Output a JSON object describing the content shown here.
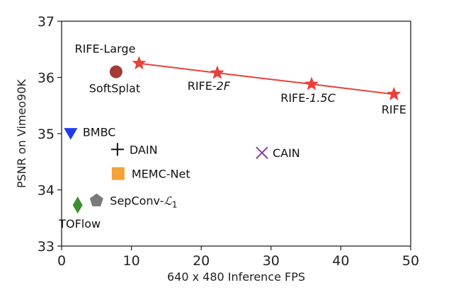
{
  "chart_data": {
    "type": "scatter",
    "title": "",
    "xlabel": "640 x 480 Inference FPS",
    "ylabel": "PSNR on Vimeo90K",
    "xlim": [
      0,
      50
    ],
    "ylim": [
      33,
      37
    ],
    "xticks": [
      0,
      10,
      20,
      30,
      40,
      50
    ],
    "yticks": [
      33,
      34,
      35,
      36,
      37
    ],
    "grid": false,
    "line_series": {
      "name": "RIFE family",
      "color": "#e8413b",
      "points": [
        {
          "label": "RIFE-Large",
          "x": 11.1,
          "y": 36.25
        },
        {
          "label": "RIFE-2F",
          "x": 22.3,
          "y": 36.08
        },
        {
          "label": "RIFE-1.5C",
          "x": 35.8,
          "y": 35.88
        },
        {
          "label": "RIFE",
          "x": 47.6,
          "y": 35.7
        }
      ]
    },
    "points": [
      {
        "label": "SoftSplat",
        "x": 7.8,
        "y": 36.1,
        "marker": "circle",
        "color": "#a23a36"
      },
      {
        "label": "BMBC",
        "x": 1.3,
        "y": 35.03,
        "marker": "triangle-down",
        "color": "#1f3cf0"
      },
      {
        "label": "DAIN",
        "x": 8.0,
        "y": 34.72,
        "marker": "plus",
        "color": "#111111"
      },
      {
        "label": "CAIN",
        "x": 28.7,
        "y": 34.66,
        "marker": "x",
        "color": "#8a3aa0"
      },
      {
        "label": "MEMC-Net",
        "x": 8.1,
        "y": 34.29,
        "marker": "square",
        "color": "#f4a23a"
      },
      {
        "label": "SepConv-",
        "math": "ℒ",
        "sub": "1",
        "x": 5.0,
        "y": 33.81,
        "marker": "pentagon",
        "color": "#7a7a7a"
      },
      {
        "label": "TOFlow",
        "x": 2.3,
        "y": 33.73,
        "marker": "diamond",
        "color": "#3f8f2e"
      }
    ]
  }
}
